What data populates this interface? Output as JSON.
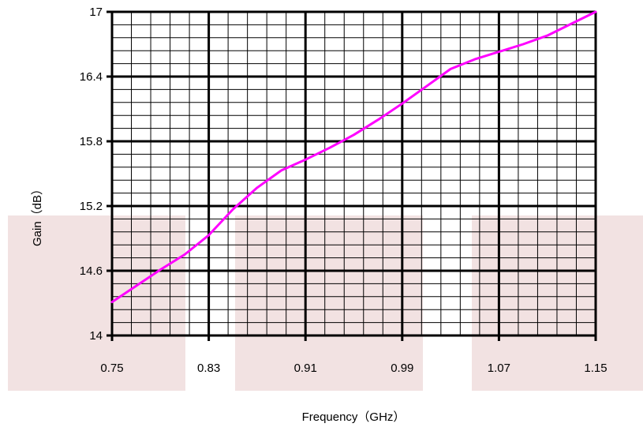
{
  "chart_data": {
    "type": "line",
    "xlabel": "Frequency（GHz）",
    "ylabel": "Gain（dB）",
    "xlim": [
      0.75,
      1.15
    ],
    "ylim": [
      14,
      17
    ],
    "x_ticks": [
      "0.75",
      "0.83",
      "0.91",
      "0.99",
      "1.07",
      "1.15"
    ],
    "y_ticks": [
      "14",
      "14.6",
      "15.2",
      "15.8",
      "16.4",
      "17"
    ],
    "grid": true,
    "minor_grid": true,
    "line_color": "#ff00ff",
    "shaded_band_color": "#f2e2e2",
    "series": [
      {
        "x": [
          0.75,
          0.77,
          0.79,
          0.81,
          0.83,
          0.85,
          0.87,
          0.89,
          0.91,
          0.93,
          0.95,
          0.97,
          0.99,
          1.01,
          1.03,
          1.05,
          1.07,
          1.09,
          1.11,
          1.13,
          1.15
        ],
        "y": [
          14.31,
          14.46,
          14.61,
          14.75,
          14.93,
          15.17,
          15.37,
          15.53,
          15.63,
          15.74,
          15.86,
          16.0,
          16.15,
          16.31,
          16.47,
          16.56,
          16.63,
          16.7,
          16.78,
          16.89,
          17.0
        ]
      }
    ]
  }
}
